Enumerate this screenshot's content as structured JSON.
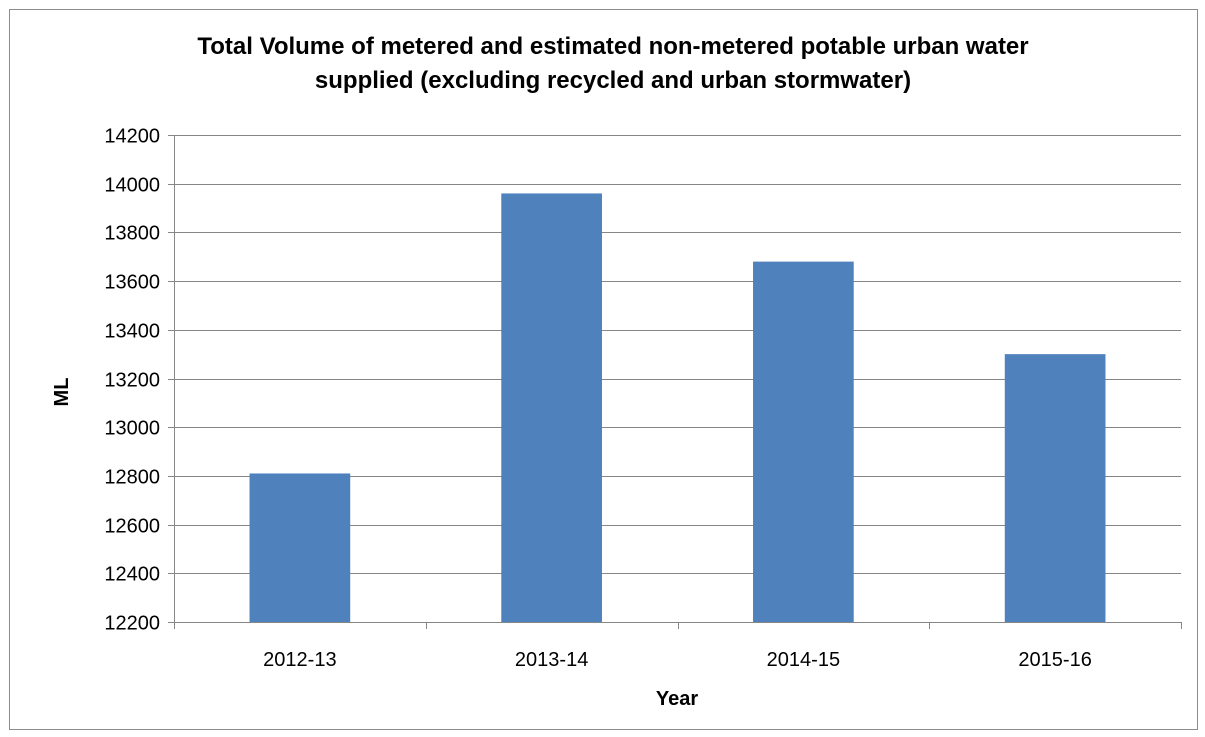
{
  "chart_data": {
    "type": "bar",
    "title": "Total Volume of metered and estimated non-metered potable urban water supplied (excluding recycled and urban stormwater)",
    "title_lines": [
      "Total Volume of metered and estimated non-metered potable urban water",
      "supplied (excluding recycled and urban stormwater)"
    ],
    "xlabel": "Year",
    "ylabel": "ML",
    "categories": [
      "2012-13",
      "2013-14",
      "2014-15",
      "2015-16"
    ],
    "values": [
      12810,
      13960,
      13680,
      13300
    ],
    "ylim": [
      12200,
      14200
    ],
    "yticks": [
      12200,
      12400,
      12600,
      12800,
      13000,
      13200,
      13400,
      13600,
      13800,
      14000,
      14200
    ],
    "grid": true,
    "legend": "none",
    "colors": {
      "bar": "#4f81bd",
      "grid": "#868686",
      "axis": "#868686",
      "frame": "#8c8c8c"
    }
  }
}
